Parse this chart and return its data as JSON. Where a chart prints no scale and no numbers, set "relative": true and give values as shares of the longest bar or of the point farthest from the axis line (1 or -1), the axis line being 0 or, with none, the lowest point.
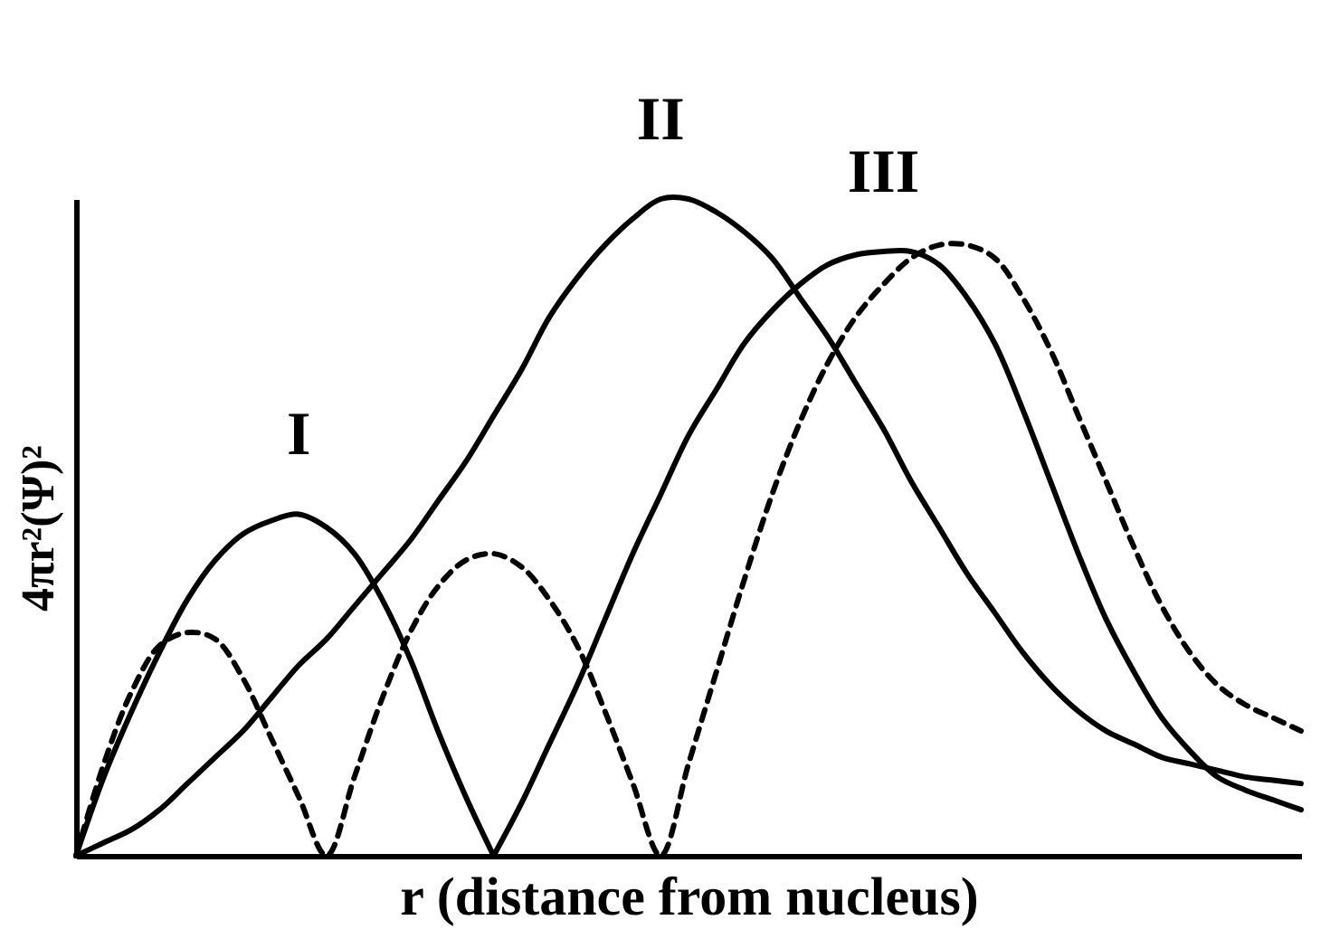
{
  "chart_data": {
    "type": "line",
    "relative": true,
    "tick_labels": false,
    "xlabel": "r (distance from nucleus)",
    "ylabel": "4πr²(Ψ)²",
    "categories": [
      null,
      null,
      null,
      null,
      null,
      null,
      null,
      null,
      null,
      null,
      null,
      null,
      null,
      null,
      null,
      null,
      null,
      null,
      null,
      null,
      null,
      null,
      null,
      null,
      null,
      null,
      null,
      null,
      null,
      null,
      null,
      null,
      null,
      null,
      null,
      null,
      null,
      null,
      null,
      null,
      null,
      null,
      null,
      null,
      null
    ],
    "series": [
      {
        "name": "I",
        "color": "#000000",
        "line_style": "solid",
        "values": [
          0,
          0.12,
          0.22,
          0.31,
          0.39,
          0.45,
          0.49,
          0.51,
          0.52,
          0.5,
          0.46,
          0.39,
          0.3,
          0.19,
          0.09,
          0,
          null,
          null,
          null,
          null,
          null,
          null,
          null,
          null,
          null,
          null,
          null,
          null,
          null,
          null,
          null,
          null,
          null,
          null,
          null,
          null,
          null,
          null,
          null,
          null,
          null,
          null,
          null,
          null,
          null
        ]
      },
      {
        "name": "II",
        "color": "#000000",
        "line_style": "solid",
        "values": [
          0,
          0.02,
          0.04,
          0.07,
          0.11,
          0.15,
          0.19,
          0.24,
          0.29,
          0.33,
          0.38,
          0.43,
          0.48,
          0.54,
          0.6,
          0.67,
          0.74,
          0.82,
          0.88,
          0.93,
          0.97,
          1,
          1,
          0.98,
          0.95,
          0.91,
          0.85,
          0.79,
          0.72,
          0.65,
          0.57,
          0.5,
          0.43,
          0.37,
          0.31,
          0.26,
          0.22,
          0.19,
          0.17,
          0.15,
          0.14,
          0.13,
          0.12,
          0.115,
          0.11
        ]
      },
      {
        "name": "III",
        "color": "#000000",
        "line_style": "solid",
        "values": [
          null,
          null,
          null,
          null,
          null,
          null,
          null,
          null,
          null,
          null,
          null,
          null,
          null,
          null,
          null,
          0,
          0.08,
          0.17,
          0.26,
          0.36,
          0.46,
          0.55,
          0.64,
          0.71,
          0.78,
          0.83,
          0.87,
          0.9,
          0.915,
          0.92,
          0.92,
          0.9,
          0.85,
          0.78,
          0.68,
          0.57,
          0.46,
          0.36,
          0.28,
          0.21,
          0.16,
          0.12,
          0.1,
          0.085,
          0.07
        ]
      },
      {
        "color": "#000000",
        "line_style": "dashed",
        "values": [
          0,
          0.14,
          0.25,
          0.32,
          0.34,
          0.33,
          0.27,
          0.18,
          0.09,
          0,
          0.12,
          0.24,
          0.34,
          0.41,
          0.45,
          0.46,
          0.44,
          0.39,
          0.32,
          0.22,
          0.11,
          0,
          0.14,
          0.28,
          0.42,
          0.55,
          0.66,
          0.75,
          0.82,
          0.87,
          0.91,
          0.93,
          0.93,
          0.91,
          0.85,
          0.77,
          0.67,
          0.57,
          0.47,
          0.38,
          0.31,
          0.26,
          0.23,
          0.21,
          0.19
        ]
      }
    ]
  }
}
